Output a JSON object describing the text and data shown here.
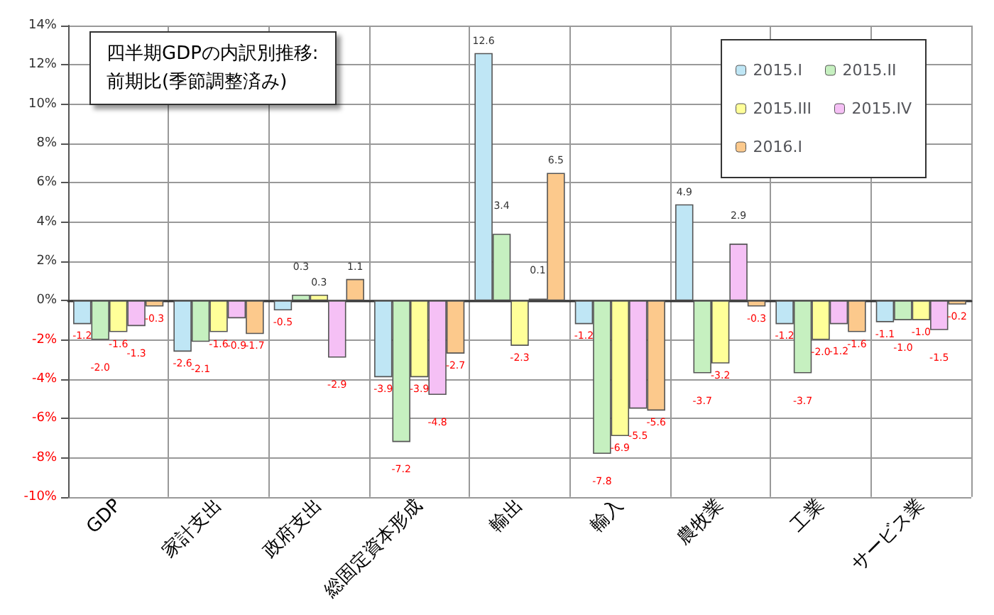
{
  "chart_data": {
    "type": "bar",
    "title": "四半期GDPの内訳別推移:\n前期比(季節調整済み)",
    "categories": [
      "GDP",
      "家計支出",
      "政府支出",
      "総固定資本形成",
      "輸出",
      "輸入",
      "農牧業",
      "工業",
      "サービス業"
    ],
    "series": [
      {
        "name": "2015.I",
        "color": "#bfe6f5",
        "values": [
          -1.2,
          -2.6,
          -0.5,
          -3.9,
          12.6,
          -1.2,
          4.9,
          -1.2,
          -1.1
        ],
        "value_labels": [
          "-1.2",
          "-2.6",
          "-0.5",
          "-3.9",
          "12.6",
          "-1.2",
          "4.9",
          "-1.2",
          "-1.1"
        ]
      },
      {
        "name": "2015.II",
        "color": "#c6f0c0",
        "values": [
          -2.0,
          -2.1,
          0.3,
          -7.2,
          3.4,
          -7.8,
          -3.7,
          -3.7,
          -1.0
        ],
        "value_labels": [
          "-2.0",
          "-2.1",
          "0.3",
          "-7.2",
          "3.4",
          "-7.8",
          "-3.7",
          "-3.7",
          "-1.0"
        ]
      },
      {
        "name": "2015.III",
        "color": "#ffff99",
        "values": [
          -1.6,
          -1.6,
          0.3,
          -3.9,
          -2.3,
          -6.9,
          -3.2,
          -2.0,
          -1.0
        ],
        "value_labels": [
          "-1.6",
          "-1.6",
          "0.3",
          "-3.9",
          "-2.3",
          "-6.9",
          "-3.2",
          "-2.0",
          "-1.0"
        ]
      },
      {
        "name": "2015.IV",
        "color": "#f5c0f5",
        "values": [
          -1.3,
          -0.9,
          -2.9,
          -4.8,
          0.1,
          -5.5,
          2.9,
          -1.2,
          -1.5
        ],
        "value_labels": [
          "-1.3",
          "-0.9",
          "-2.9",
          "-4.8",
          "0.1",
          "-5.5",
          "2.9",
          "-1.2",
          "-1.5"
        ]
      },
      {
        "name": "2016.I",
        "color": "#fcc98c",
        "values": [
          -0.3,
          -1.7,
          1.1,
          -2.7,
          6.5,
          -5.6,
          -0.3,
          -1.6,
          -0.2
        ],
        "value_labels": [
          "-0.3",
          "-1.7",
          "1.1",
          "-2.7",
          "6.5",
          "-5.6",
          "-0.3",
          "-1.6",
          "-0.2"
        ]
      }
    ],
    "ylim": [
      -10,
      14
    ],
    "yticks": [
      {
        "value": -10,
        "label": "-10%"
      },
      {
        "value": -8,
        "label": "-8%"
      },
      {
        "value": -6,
        "label": "-6%"
      },
      {
        "value": -4,
        "label": "-4%"
      },
      {
        "value": -2,
        "label": "-2%"
      },
      {
        "value": 0,
        "label": "0%"
      },
      {
        "value": 2,
        "label": "2%"
      },
      {
        "value": 4,
        "label": "4%"
      },
      {
        "value": 6,
        "label": "6%"
      },
      {
        "value": 8,
        "label": "8%"
      },
      {
        "value": 10,
        "label": "10%"
      },
      {
        "value": 12,
        "label": "12%"
      },
      {
        "value": 14,
        "label": "14%"
      }
    ],
    "grid": true,
    "legend": "top right"
  }
}
